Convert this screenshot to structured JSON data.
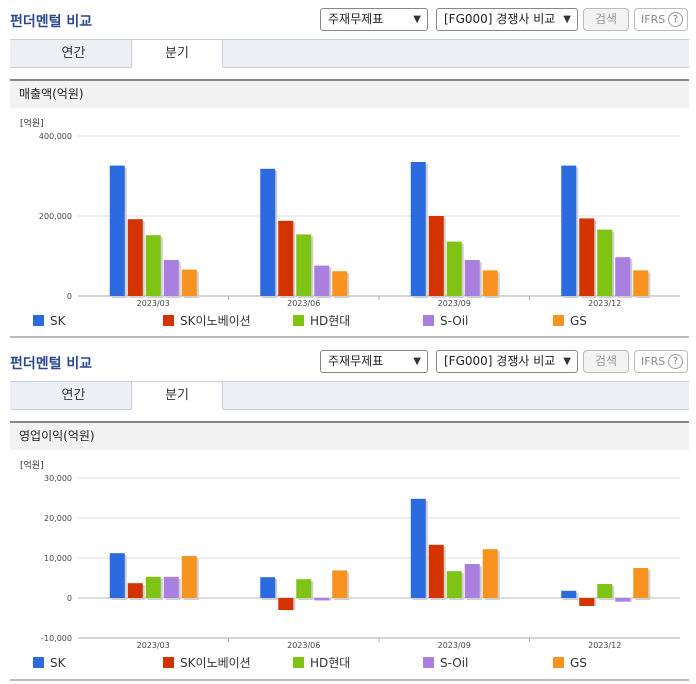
{
  "panels": [
    {
      "title": "펀더멘털 비교",
      "select1": "주재무제표",
      "select2": "[FG000] 경쟁사 비교",
      "search_label": "검색",
      "ifrs_label": "IFRS",
      "help_glyph": "?",
      "tabs": [
        {
          "label": "연간"
        },
        {
          "label": "분기"
        }
      ],
      "active_tab": 1,
      "subtitle": "매출액(억원)"
    },
    {
      "title": "펀더멘털 비교",
      "select1": "주재무제표",
      "select2": "[FG000] 경쟁사 비교",
      "search_label": "검색",
      "ifrs_label": "IFRS",
      "help_glyph": "?",
      "tabs": [
        {
          "label": "연간"
        },
        {
          "label": "분기"
        }
      ],
      "active_tab": 1,
      "subtitle": "영업이익(억원)"
    }
  ],
  "icons": {
    "select_caret": "chevron-down-icon",
    "help": "question-circle-icon"
  },
  "chart_data": [
    {
      "type": "bar",
      "title": "매출액(억원)",
      "unit_label": "[억원]",
      "categories": [
        "2023/03",
        "2023/06",
        "2023/09",
        "2023/12"
      ],
      "series": [
        {
          "name": "SK",
          "color": "#2c6ae0",
          "values": [
            326000,
            318000,
            335000,
            326000
          ]
        },
        {
          "name": "SK이노베이션",
          "color": "#d43300",
          "values": [
            192000,
            188000,
            200000,
            194000
          ]
        },
        {
          "name": "HD현대",
          "color": "#7fc314",
          "values": [
            152000,
            154000,
            136000,
            166000
          ]
        },
        {
          "name": "S-Oil",
          "color": "#a97fe0",
          "values": [
            90000,
            76000,
            90000,
            97000
          ]
        },
        {
          "name": "GS",
          "color": "#f7931e",
          "values": [
            66000,
            62000,
            64000,
            64000
          ]
        }
      ],
      "ylim": [
        0,
        400000
      ],
      "yticks": [
        "0",
        "200,000",
        "400,000"
      ],
      "ytick_values": [
        0,
        200000,
        400000
      ],
      "grid": true,
      "legend": "bottom"
    },
    {
      "type": "bar",
      "title": "영업이익(억원)",
      "unit_label": "[억원]",
      "categories": [
        "2023/03",
        "2023/06",
        "2023/09",
        "2023/12"
      ],
      "series": [
        {
          "name": "SK",
          "color": "#2c6ae0",
          "values": [
            11200,
            5200,
            24800,
            1800
          ]
        },
        {
          "name": "SK이노베이션",
          "color": "#d43300",
          "values": [
            3700,
            -3000,
            13300,
            -2000
          ]
        },
        {
          "name": "HD현대",
          "color": "#7fc314",
          "values": [
            5300,
            4700,
            6700,
            3500
          ]
        },
        {
          "name": "S-Oil",
          "color": "#a97fe0",
          "values": [
            5300,
            -600,
            8500,
            -900
          ]
        },
        {
          "name": "GS",
          "color": "#f7931e",
          "values": [
            10500,
            6900,
            12200,
            7500
          ]
        }
      ],
      "ylim": [
        -10000,
        30000
      ],
      "yticks": [
        "-10,000",
        "0",
        "10,000",
        "20,000",
        "30,000"
      ],
      "ytick_values": [
        -10000,
        0,
        10000,
        20000,
        30000
      ],
      "grid": true,
      "legend": "bottom"
    }
  ]
}
